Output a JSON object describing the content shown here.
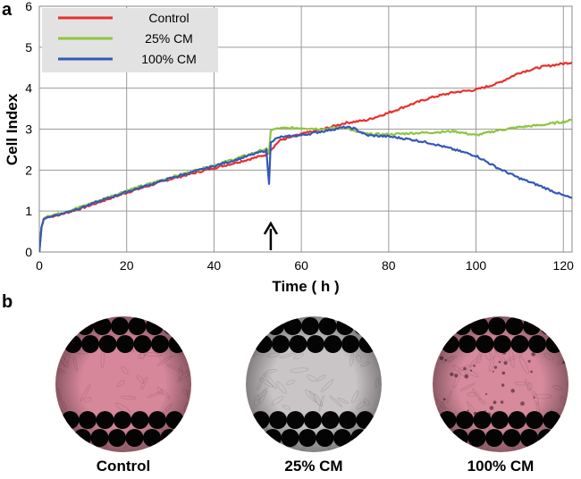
{
  "panels": {
    "a": "a",
    "b": "b"
  },
  "chart_data": {
    "type": "line",
    "xlabel": "Time ( h )",
    "ylabel": "Cell Index",
    "xlim": [
      0,
      122
    ],
    "ylim": [
      0,
      6
    ],
    "xticks": [
      0,
      20,
      40,
      60,
      80,
      100,
      120
    ],
    "yticks": [
      0,
      1,
      2,
      3,
      4,
      5,
      6
    ],
    "xgrid": [
      0,
      20,
      40,
      60,
      80,
      100,
      120
    ],
    "ygrid": [
      1,
      2,
      3,
      4,
      5,
      6
    ],
    "legend_position": "top-left",
    "annotation": {
      "type": "arrow",
      "x": 53,
      "label": ""
    },
    "series": [
      {
        "name": "Control",
        "color": "#e8302a",
        "x": [
          0,
          0.5,
          1,
          2,
          5,
          10,
          20,
          30,
          40,
          45,
          50,
          52,
          55,
          60,
          65,
          70,
          75,
          80,
          85,
          90,
          95,
          100,
          105,
          110,
          115,
          120,
          122
        ],
        "y": [
          0,
          0.6,
          0.8,
          0.85,
          0.92,
          1.08,
          1.45,
          1.78,
          2.05,
          2.18,
          2.32,
          2.38,
          2.72,
          2.88,
          3.0,
          3.15,
          3.22,
          3.4,
          3.6,
          3.78,
          3.9,
          3.96,
          4.12,
          4.38,
          4.52,
          4.6,
          4.63
        ]
      },
      {
        "name": "25% CM",
        "color": "#8dc63f",
        "x": [
          0,
          0.5,
          1,
          2,
          5,
          10,
          20,
          30,
          40,
          45,
          50,
          52,
          52.6,
          53,
          55,
          60,
          65,
          70,
          72,
          75,
          80,
          85,
          90,
          95,
          100,
          105,
          110,
          115,
          120,
          122
        ],
        "y": [
          0,
          0.6,
          0.82,
          0.88,
          0.95,
          1.12,
          1.5,
          1.82,
          2.12,
          2.28,
          2.45,
          2.52,
          2.4,
          2.98,
          3.02,
          3.03,
          3.0,
          3.05,
          2.95,
          2.88,
          2.87,
          2.9,
          2.92,
          2.95,
          2.85,
          2.97,
          3.05,
          3.1,
          3.18,
          3.22
        ]
      },
      {
        "name": "100% CM",
        "color": "#3458b8",
        "x": [
          0,
          0.5,
          1,
          2,
          5,
          10,
          20,
          30,
          40,
          45,
          50,
          52,
          52.6,
          53,
          55,
          60,
          65,
          70,
          72,
          75,
          80,
          85,
          90,
          95,
          100,
          105,
          110,
          115,
          120,
          122
        ],
        "y": [
          0,
          0.6,
          0.8,
          0.86,
          0.93,
          1.1,
          1.47,
          1.8,
          2.1,
          2.25,
          2.42,
          2.48,
          1.65,
          2.7,
          2.8,
          2.85,
          2.95,
          3.05,
          3.02,
          2.85,
          2.82,
          2.75,
          2.65,
          2.5,
          2.35,
          2.05,
          1.8,
          1.6,
          1.38,
          1.32
        ]
      }
    ]
  },
  "micrographs": [
    {
      "label": "Control",
      "tint": "#d7879a"
    },
    {
      "label": "25% CM",
      "tint": "#c9c4c6"
    },
    {
      "label": "100% CM",
      "tint": "#d68a9b"
    }
  ]
}
